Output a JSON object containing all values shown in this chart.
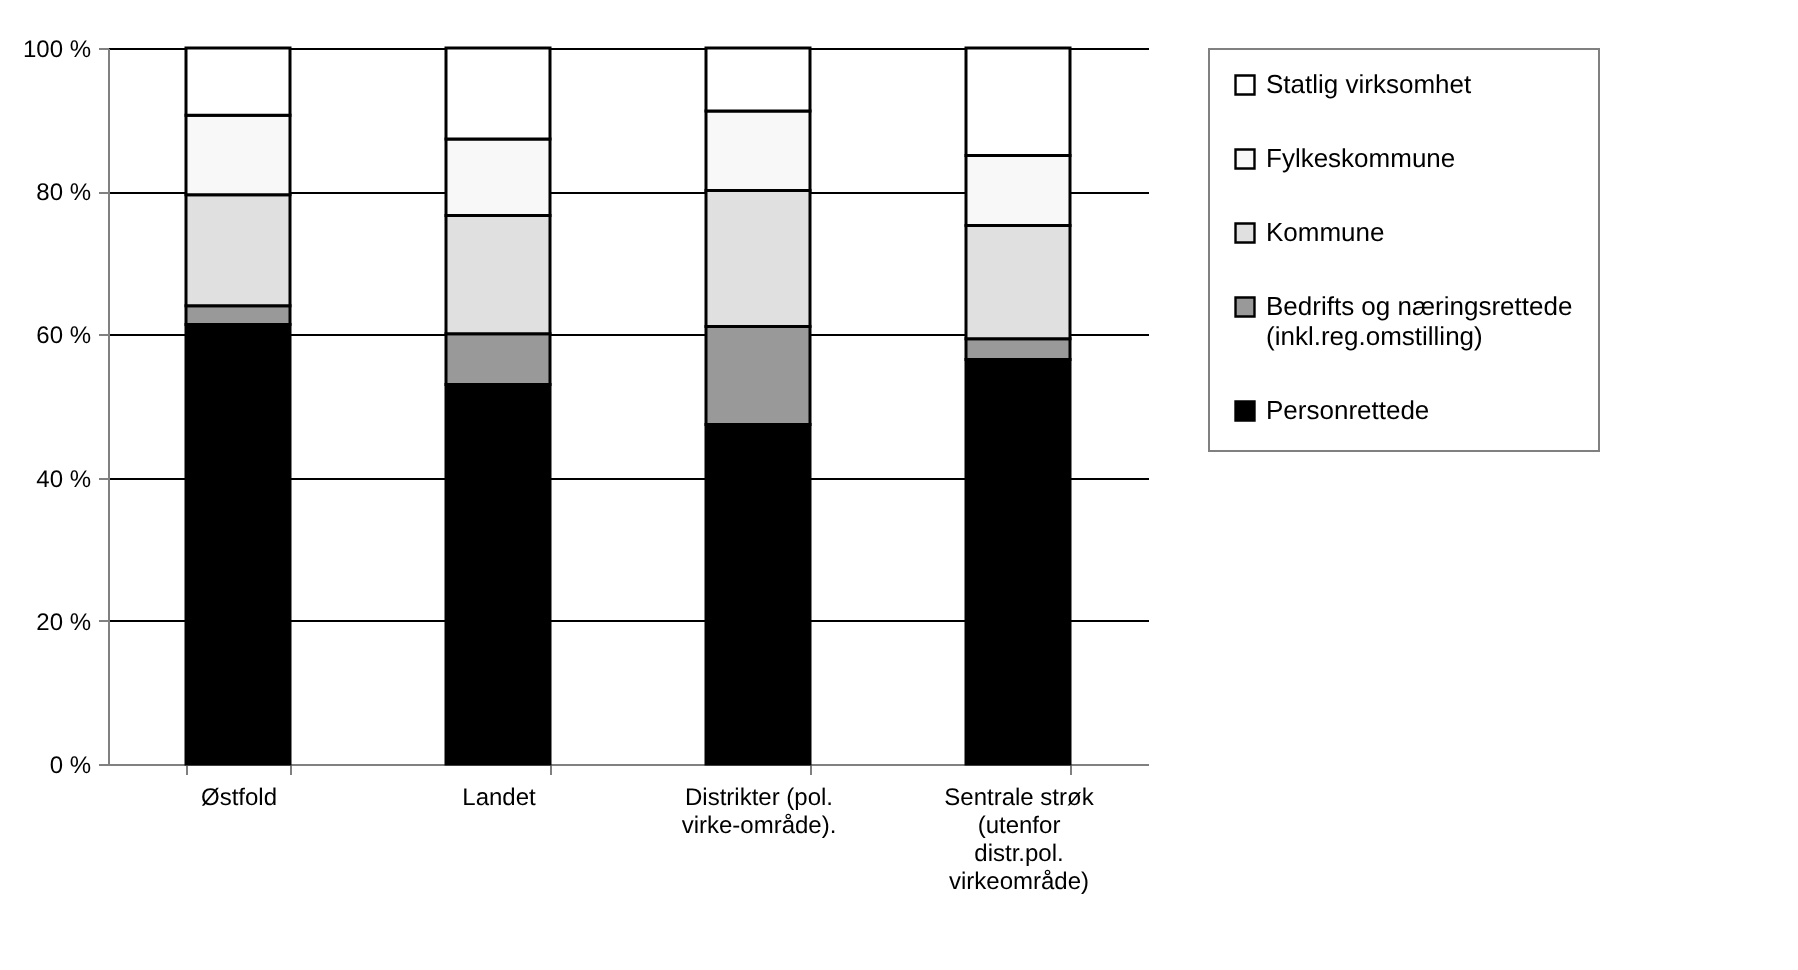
{
  "chart_data": {
    "type": "bar",
    "stacked": true,
    "categories": [
      "Østfold",
      "Landet",
      "Distrikter (pol. virke-område).",
      "Sentrale strøk (utenfor distr.pol. virkeområde)"
    ],
    "series": [
      {
        "name": "Personrettede",
        "color": "#000000",
        "values": [
          61.4,
          53.0,
          47.4,
          56.5
        ]
      },
      {
        "name": "Bedrifts og næringsrettede (inkl.reg.omstilling)",
        "color": "#999999",
        "values": [
          2.6,
          7.1,
          13.7,
          2.9
        ]
      },
      {
        "name": "Kommune",
        "color": "#e0e0e0",
        "values": [
          15.5,
          16.5,
          19.0,
          15.8
        ]
      },
      {
        "name": "Fylkeskommune",
        "color": "#f8f8f8",
        "values": [
          11.1,
          10.7,
          11.1,
          9.8
        ]
      },
      {
        "name": "Statlig virksomhet",
        "color": "#ffffff",
        "values": [
          9.4,
          12.7,
          8.8,
          15.0
        ]
      }
    ],
    "ylim": [
      0,
      100
    ],
    "yticks": [
      {
        "value": 0,
        "label": "0 %"
      },
      {
        "value": 20,
        "label": "20 %"
      },
      {
        "value": 40,
        "label": "40 %"
      },
      {
        "value": 60,
        "label": "60 %"
      },
      {
        "value": 80,
        "label": "80 %"
      },
      {
        "value": 100,
        "label": "100 %"
      }
    ],
    "grid": "y",
    "legend": "right"
  }
}
